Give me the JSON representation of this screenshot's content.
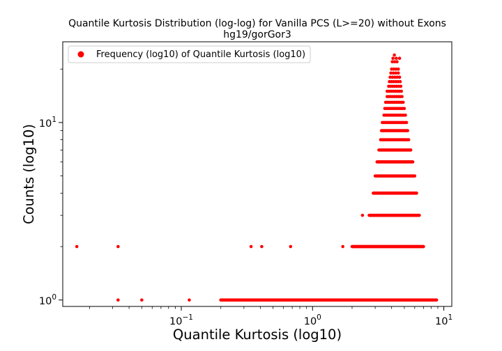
{
  "chart_data": {
    "type": "scatter",
    "title": "Quantile Kurtosis Distribution (log-log) for Vanilla PCS (L>=20) without Exons",
    "subtitle": "hg19/gorGor3",
    "xlabel": "Quantile Kurtosis (log10)",
    "ylabel": "Counts (log10)",
    "xscale": "log",
    "yscale": "log",
    "xlim": [
      0.0125,
      11.5
    ],
    "ylim": [
      0.92,
      28.5
    ],
    "x_ticks": [
      {
        "value": 0.1,
        "base": "10",
        "exp": "−1"
      },
      {
        "value": 1,
        "base": "10",
        "exp": "0"
      },
      {
        "value": 10,
        "base": "10",
        "exp": "1"
      }
    ],
    "y_ticks": [
      {
        "value": 1,
        "base": "10",
        "exp": "0"
      },
      {
        "value": 10,
        "base": "10",
        "exp": "1"
      }
    ],
    "grid": false,
    "legend_position": "top-left",
    "marker_color": "#ff0000",
    "series": [
      {
        "name": "Frequency (log10) of Quantile Kurtosis (log10)",
        "color": "#ff0000",
        "points": [
          {
            "x": 0.016,
            "y": 2
          },
          {
            "x": 0.033,
            "y": 2
          },
          {
            "x": 0.033,
            "y": 1
          },
          {
            "x": 0.05,
            "y": 1
          },
          {
            "x": 0.115,
            "y": 1
          },
          {
            "x": 0.34,
            "y": 2
          },
          {
            "x": 0.41,
            "y": 2
          },
          {
            "x": 0.68,
            "y": 2
          },
          {
            "x": 1.7,
            "y": 2
          },
          {
            "x": 2.4,
            "y": 3
          }
        ],
        "clusters": [
          {
            "y": 1,
            "x_min": 0.2,
            "x_max": 8.8,
            "count": 230
          },
          {
            "y": 2,
            "x_min": 2.0,
            "x_max": 7.0,
            "count": 120
          },
          {
            "y": 3,
            "x_min": 2.7,
            "x_max": 6.5,
            "count": 90
          },
          {
            "y": 4,
            "x_min": 2.9,
            "x_max": 6.2,
            "count": 70
          },
          {
            "y": 5,
            "x_min": 3.0,
            "x_max": 6.0,
            "count": 55
          },
          {
            "y": 6,
            "x_min": 3.1,
            "x_max": 5.8,
            "count": 45
          },
          {
            "y": 7,
            "x_min": 3.2,
            "x_max": 5.6,
            "count": 36
          },
          {
            "y": 8,
            "x_min": 3.3,
            "x_max": 5.4,
            "count": 28
          },
          {
            "y": 9,
            "x_min": 3.35,
            "x_max": 5.3,
            "count": 22
          },
          {
            "y": 10,
            "x_min": 3.4,
            "x_max": 5.2,
            "count": 18
          },
          {
            "y": 11,
            "x_min": 3.5,
            "x_max": 5.1,
            "count": 15
          },
          {
            "y": 12,
            "x_min": 3.55,
            "x_max": 5.0,
            "count": 13
          },
          {
            "y": 13,
            "x_min": 3.6,
            "x_max": 4.9,
            "count": 11
          },
          {
            "y": 14,
            "x_min": 3.7,
            "x_max": 4.8,
            "count": 9
          },
          {
            "y": 15,
            "x_min": 3.7,
            "x_max": 4.75,
            "count": 8
          },
          {
            "y": 16,
            "x_min": 3.8,
            "x_max": 4.7,
            "count": 7
          },
          {
            "y": 17,
            "x_min": 3.85,
            "x_max": 4.65,
            "count": 6
          },
          {
            "y": 18,
            "x_min": 3.9,
            "x_max": 4.6,
            "count": 5
          },
          {
            "y": 19,
            "x_min": 3.95,
            "x_max": 4.5,
            "count": 4
          },
          {
            "y": 20,
            "x_min": 4.0,
            "x_max": 4.5,
            "count": 4
          },
          {
            "y": 22,
            "x_min": 4.05,
            "x_max": 4.4,
            "count": 3
          },
          {
            "y": 23,
            "x_min": 4.1,
            "x_max": 4.6,
            "count": 3
          },
          {
            "y": 24,
            "x_min": 4.2,
            "x_max": 4.2,
            "count": 1
          }
        ]
      }
    ]
  }
}
